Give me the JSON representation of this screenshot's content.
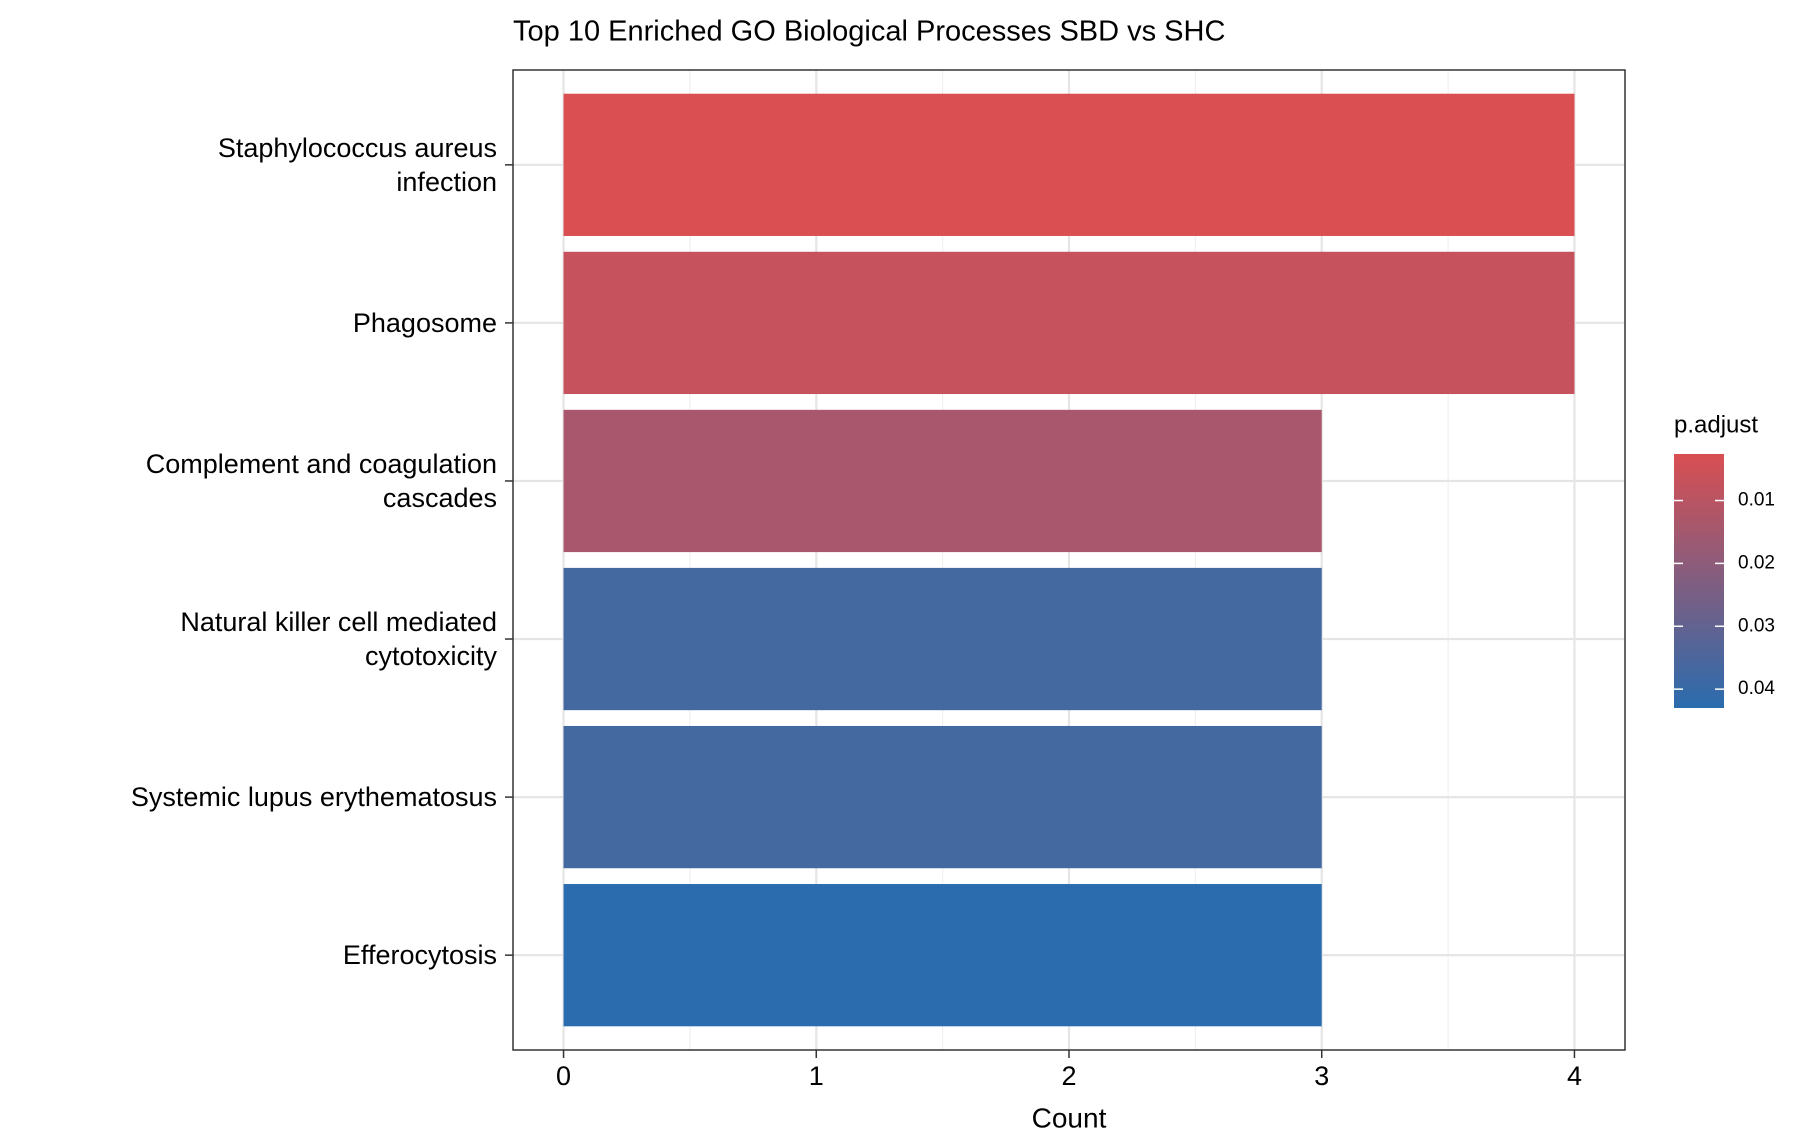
{
  "chart_data": {
    "type": "bar",
    "orientation": "horizontal",
    "title": "Top 10 Enriched GO Biological Processes SBD vs SHC",
    "xlabel": "Count",
    "categories": [
      "Staphylococcus aureus\ninfection",
      "Phagosome",
      "Complement and coagulation\ncascades",
      "Natural killer cell mediated\ncytotoxicity",
      "Systemic lupus erythematosus",
      "Efferocytosis"
    ],
    "values": [
      4,
      4,
      3,
      3,
      3,
      3
    ],
    "color_variable": "p.adjust",
    "color_values": [
      0.0026,
      0.0072,
      0.0139,
      0.037,
      0.037,
      0.043
    ],
    "color_low": "#d94f52",
    "color_high": "#2a6cae",
    "clim": [
      0.0026,
      0.043
    ],
    "colorbar_ticks": [
      0.01,
      0.02,
      0.03,
      0.04
    ],
    "xlim": [
      -0.2,
      4.2
    ],
    "xticks": [
      0,
      1,
      2,
      3,
      4
    ],
    "grid": true
  }
}
